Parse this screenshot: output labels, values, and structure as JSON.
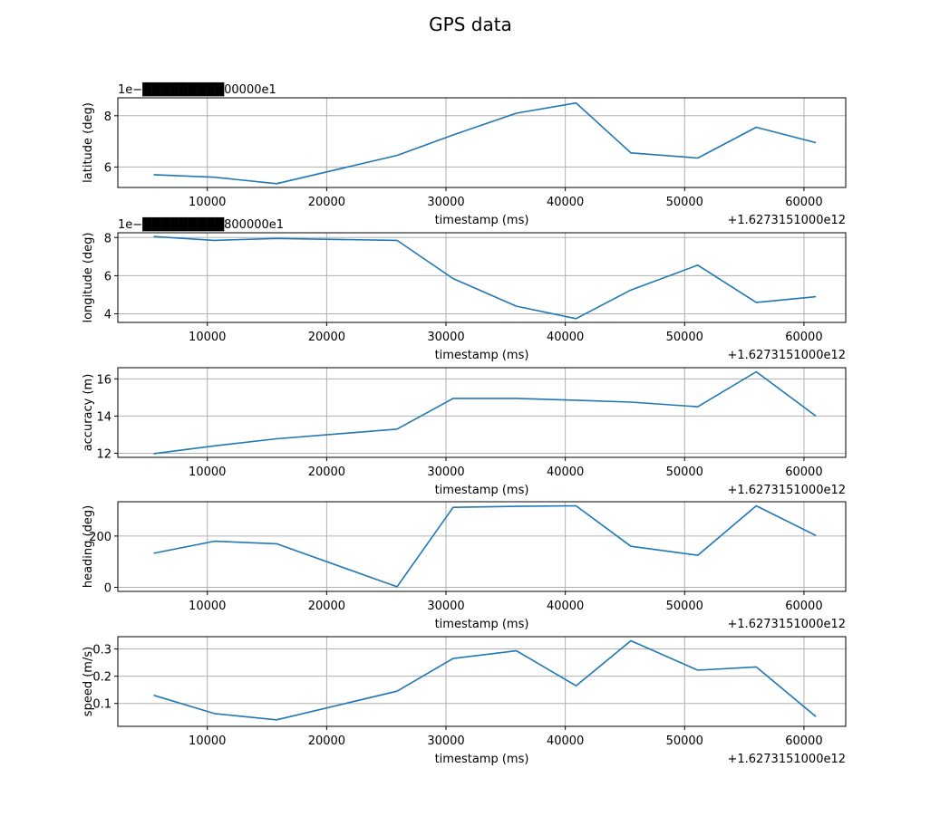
{
  "figure": {
    "title": "GPS data",
    "line_color": "#1f77b4",
    "grid": true
  },
  "chart_data": [
    {
      "type": "line",
      "xlabel": "timestamp (ms)",
      "ylabel": "latitude (deg)",
      "x_offset_label": "+1.6273151000e12",
      "y_offset_label": "1e−█████████00000e1",
      "xlim": [
        2500,
        63500
      ],
      "ylim": [
        5.2,
        8.7
      ],
      "xticks": [
        10000,
        20000,
        30000,
        40000,
        50000,
        60000
      ],
      "xtick_labels": [
        "10000",
        "20000",
        "30000",
        "40000",
        "50000",
        "60000"
      ],
      "yticks": [
        6,
        8
      ],
      "ytick_labels": [
        "6",
        "8"
      ],
      "x": [
        5500,
        10600,
        15800,
        25900,
        30600,
        35900,
        40900,
        45500,
        51100,
        56000,
        61000
      ],
      "y": [
        5.7,
        5.6,
        5.35,
        6.45,
        7.25,
        8.1,
        8.5,
        6.55,
        6.35,
        7.55,
        6.95
      ]
    },
    {
      "type": "line",
      "xlabel": "timestamp (ms)",
      "ylabel": "longitude (deg)",
      "x_offset_label": "+1.6273151000e12",
      "y_offset_label": "1e−█████████800000e1",
      "xlim": [
        2500,
        63500
      ],
      "ylim": [
        3.55,
        8.25
      ],
      "xticks": [
        10000,
        20000,
        30000,
        40000,
        50000,
        60000
      ],
      "xtick_labels": [
        "10000",
        "20000",
        "30000",
        "40000",
        "50000",
        "60000"
      ],
      "yticks": [
        4,
        6,
        8
      ],
      "ytick_labels": [
        "4",
        "6",
        "8"
      ],
      "x": [
        5500,
        10600,
        15800,
        25900,
        30600,
        35900,
        40900,
        45500,
        51100,
        56000,
        61000
      ],
      "y": [
        8.05,
        7.85,
        7.95,
        7.85,
        5.85,
        4.4,
        3.75,
        5.25,
        6.55,
        4.6,
        4.9
      ]
    },
    {
      "type": "line",
      "xlabel": "timestamp (ms)",
      "ylabel": "accuracy (m)",
      "x_offset_label": "+1.6273151000e12",
      "xlim": [
        2500,
        63500
      ],
      "ylim": [
        11.78,
        16.6
      ],
      "xticks": [
        10000,
        20000,
        30000,
        40000,
        50000,
        60000
      ],
      "xtick_labels": [
        "10000",
        "20000",
        "30000",
        "40000",
        "50000",
        "60000"
      ],
      "yticks": [
        12,
        14,
        16
      ],
      "ytick_labels": [
        "12",
        "14",
        "16"
      ],
      "x": [
        5500,
        10600,
        15800,
        25900,
        30600,
        35900,
        40900,
        45500,
        51100,
        56000,
        61000
      ],
      "y": [
        11.98,
        12.4,
        12.78,
        13.3,
        14.95,
        14.95,
        14.85,
        14.75,
        14.5,
        16.38,
        14.0
      ]
    },
    {
      "type": "line",
      "xlabel": "timestamp (ms)",
      "ylabel": "heading (deg)",
      "x_offset_label": "+1.6273151000e12",
      "xlim": [
        2500,
        63500
      ],
      "ylim": [
        -16,
        334
      ],
      "xticks": [
        10000,
        20000,
        30000,
        40000,
        50000,
        60000
      ],
      "xtick_labels": [
        "10000",
        "20000",
        "30000",
        "40000",
        "50000",
        "60000"
      ],
      "yticks": [
        0,
        200
      ],
      "ytick_labels": [
        "0",
        "200"
      ],
      "x": [
        5500,
        10600,
        15800,
        25900,
        30600,
        35900,
        40900,
        45500,
        51100,
        56000,
        61000
      ],
      "y": [
        133,
        180,
        170,
        2,
        312,
        316,
        318,
        160,
        125,
        318,
        202
      ]
    },
    {
      "type": "line",
      "xlabel": "timestamp (ms)",
      "ylabel": "speed (m/s)",
      "x_offset_label": "+1.6273151000e12",
      "xlim": [
        2500,
        63500
      ],
      "ylim": [
        0.016,
        0.345
      ],
      "xticks": [
        10000,
        20000,
        30000,
        40000,
        50000,
        60000
      ],
      "xtick_labels": [
        "10000",
        "20000",
        "30000",
        "40000",
        "50000",
        "60000"
      ],
      "yticks": [
        0.1,
        0.2,
        0.3
      ],
      "ytick_labels": [
        "0.1",
        "0.2",
        "0.3"
      ],
      "x": [
        5500,
        10600,
        15800,
        25900,
        30600,
        35900,
        40900,
        45500,
        51100,
        56000,
        61000
      ],
      "y": [
        0.13,
        0.063,
        0.04,
        0.145,
        0.265,
        0.293,
        0.165,
        0.33,
        0.222,
        0.234,
        0.052
      ]
    }
  ]
}
